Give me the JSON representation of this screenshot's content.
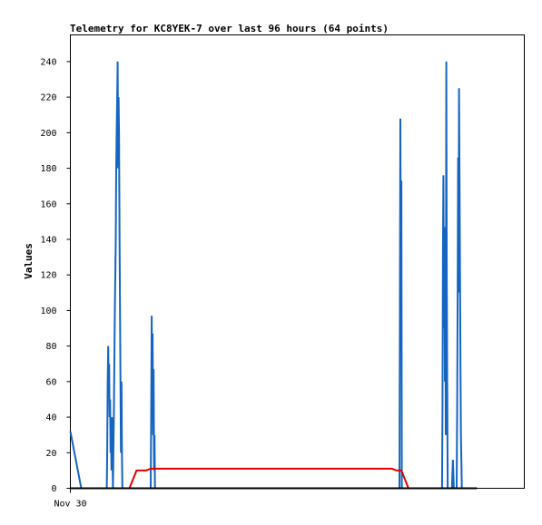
{
  "chart_data": {
    "type": "line",
    "title": "Telemetry for KC8YEK-7 over last 96 hours (64 points)",
    "ylabel": "Values",
    "xlabel": "",
    "x_tick_labels": [
      "Nov 30"
    ],
    "ylim": [
      0,
      255
    ],
    "xlim": [
      0,
      96
    ],
    "y_ticks": [
      0,
      20,
      40,
      60,
      80,
      100,
      120,
      140,
      160,
      180,
      200,
      220,
      240
    ],
    "grid": false,
    "legend": "none",
    "series": [
      {
        "color": "#1565c0",
        "points": [
          [
            0.0,
            32
          ],
          [
            2.3,
            0
          ],
          [
            7.7,
            0
          ],
          [
            7.8,
            20
          ],
          [
            7.9,
            60
          ],
          [
            8.0,
            80
          ],
          [
            8.1,
            55
          ],
          [
            8.2,
            70
          ],
          [
            8.3,
            40
          ],
          [
            8.4,
            50
          ],
          [
            8.5,
            20
          ],
          [
            8.6,
            30
          ],
          [
            8.7,
            10
          ],
          [
            8.8,
            40
          ],
          [
            8.9,
            20
          ],
          [
            9.0,
            0
          ],
          [
            9.2,
            40
          ],
          [
            9.4,
            100
          ],
          [
            9.6,
            140
          ],
          [
            9.7,
            180
          ],
          [
            9.8,
            200
          ],
          [
            9.9,
            220
          ],
          [
            10.0,
            240
          ],
          [
            10.1,
            180
          ],
          [
            10.2,
            220
          ],
          [
            10.3,
            200
          ],
          [
            10.4,
            140
          ],
          [
            10.5,
            100
          ],
          [
            10.6,
            60
          ],
          [
            10.7,
            20
          ],
          [
            10.8,
            60
          ],
          [
            10.9,
            20
          ],
          [
            11.0,
            0
          ],
          [
            17.0,
            0
          ],
          [
            17.1,
            48
          ],
          [
            17.2,
            97
          ],
          [
            17.3,
            50
          ],
          [
            17.4,
            87
          ],
          [
            17.5,
            30
          ],
          [
            17.6,
            67
          ],
          [
            17.7,
            10
          ],
          [
            17.8,
            30
          ],
          [
            17.9,
            0
          ],
          [
            69.6,
            0
          ],
          [
            69.7,
            104
          ],
          [
            69.8,
            208
          ],
          [
            69.9,
            104
          ],
          [
            70.0,
            173
          ],
          [
            70.1,
            0
          ],
          [
            78.6,
            0
          ],
          [
            78.7,
            44
          ],
          [
            78.8,
            132
          ],
          [
            78.9,
            176
          ],
          [
            79.0,
            90
          ],
          [
            79.1,
            147
          ],
          [
            79.2,
            60
          ],
          [
            79.3,
            121
          ],
          [
            79.4,
            30
          ],
          [
            79.5,
            240
          ],
          [
            79.6,
            120
          ],
          [
            79.7,
            60
          ],
          [
            79.8,
            0
          ],
          [
            80.7,
            0
          ],
          [
            80.8,
            8
          ],
          [
            80.9,
            16
          ],
          [
            81.0,
            8
          ],
          [
            81.1,
            0
          ],
          [
            81.7,
            0
          ],
          [
            81.8,
            40
          ],
          [
            81.9,
            110
          ],
          [
            82.0,
            186
          ],
          [
            82.1,
            110
          ],
          [
            82.2,
            225
          ],
          [
            82.3,
            180
          ],
          [
            82.4,
            120
          ],
          [
            82.5,
            70
          ],
          [
            82.6,
            30
          ],
          [
            82.8,
            0
          ],
          [
            85.3,
            0
          ]
        ]
      },
      {
        "color": "#e00000",
        "points": [
          [
            12.5,
            0
          ],
          [
            14.0,
            10
          ],
          [
            16.0,
            10
          ],
          [
            17.0,
            11
          ],
          [
            19.0,
            11
          ],
          [
            35.0,
            11
          ],
          [
            55.0,
            11
          ],
          [
            68.0,
            11
          ],
          [
            69.0,
            10
          ],
          [
            70.0,
            10
          ],
          [
            71.5,
            0
          ]
        ]
      },
      {
        "color": "#000000",
        "points": [
          [
            0.0,
            0
          ],
          [
            86.0,
            0
          ]
        ]
      }
    ]
  }
}
